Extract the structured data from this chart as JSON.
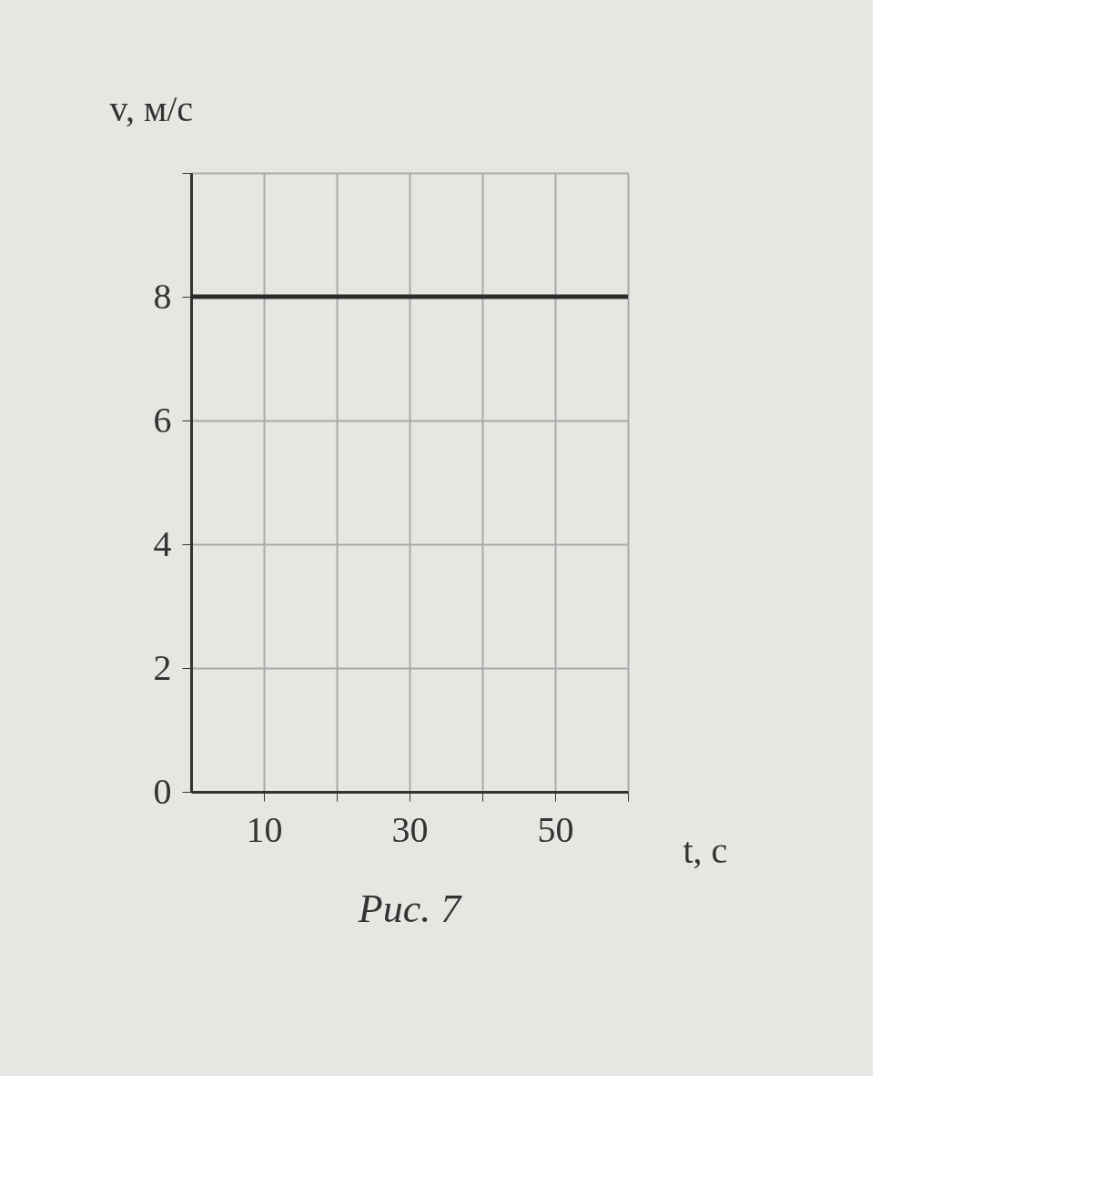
{
  "chart_data": {
    "type": "line",
    "xlabel": "t, с",
    "ylabel": "v, м/с",
    "annotations": [
      "Рис. 7"
    ],
    "series": [
      {
        "color": "#2b2b2b",
        "x": [
          0,
          60
        ],
        "values": [
          8,
          8
        ]
      }
    ],
    "xlim": [
      0,
      60
    ],
    "ylim": [
      0,
      10
    ],
    "xticks": [
      10,
      {
        "value": 20,
        "label": null
      },
      30,
      {
        "value": 40,
        "label": null
      },
      50,
      {
        "value": 60,
        "label": null
      }
    ],
    "yticks": [
      0,
      2,
      4,
      6,
      8,
      {
        "value": 10,
        "label": null
      }
    ],
    "grid": true,
    "marker": "none",
    "line_style": "solid"
  }
}
